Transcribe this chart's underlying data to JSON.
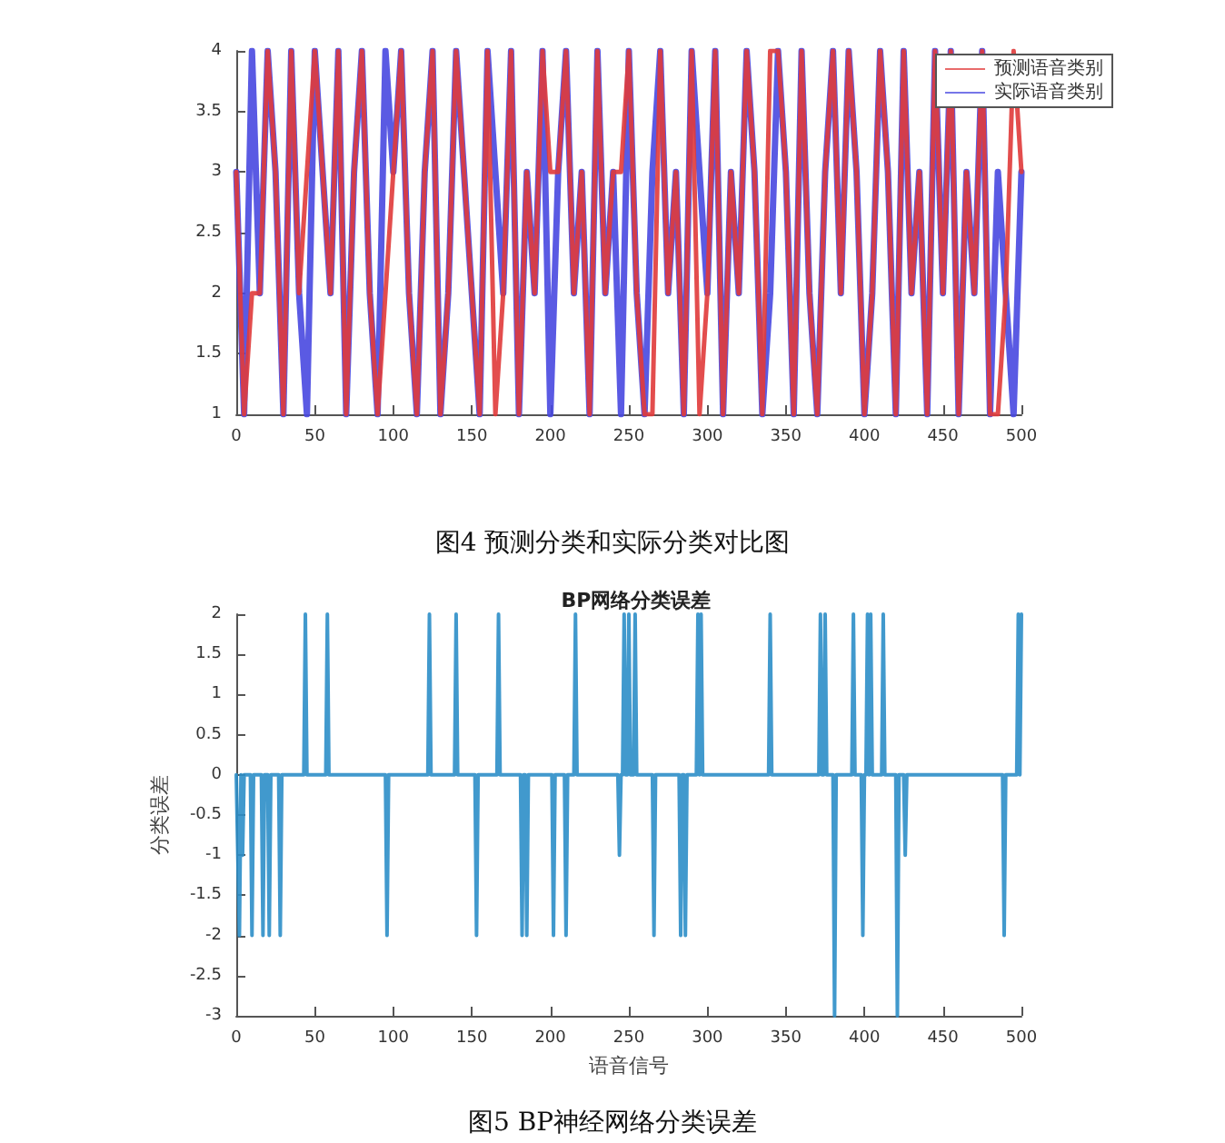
{
  "chart_data": [
    {
      "type": "line",
      "annotations": [
        "图4 预测分类和实际分类对比图"
      ],
      "xlim": [
        0,
        500
      ],
      "xticks": [
        0,
        50,
        100,
        150,
        200,
        250,
        300,
        350,
        400,
        450,
        500
      ],
      "ylim": [
        1,
        4
      ],
      "yticks": [
        1,
        1.5,
        2,
        2.5,
        3,
        3.5,
        4
      ],
      "grid": false,
      "legend": "top right",
      "marker": "none",
      "line_style": "solid",
      "x": [
        0,
        5,
        10,
        15,
        20,
        25,
        30,
        35,
        40,
        45,
        50,
        55,
        60,
        65,
        70,
        75,
        80,
        85,
        90,
        95,
        100,
        105,
        110,
        115,
        120,
        125,
        130,
        135,
        140,
        145,
        150,
        155,
        160,
        165,
        170,
        175,
        180,
        185,
        190,
        195,
        200,
        205,
        210,
        215,
        220,
        225,
        230,
        235,
        240,
        245,
        250,
        255,
        260,
        265,
        270,
        275,
        280,
        285,
        290,
        295,
        300,
        305,
        310,
        315,
        320,
        325,
        330,
        335,
        340,
        345,
        350,
        355,
        360,
        365,
        370,
        375,
        380,
        385,
        390,
        395,
        400,
        405,
        410,
        415,
        420,
        425,
        430,
        435,
        440,
        445,
        450,
        455,
        460,
        465,
        470,
        475,
        480,
        485,
        490,
        495,
        500
      ],
      "series": [
        {
          "name": "预测语音类别",
          "color": "#e03a3a",
          "values": [
            3,
            1,
            2,
            2,
            4,
            3,
            1,
            4,
            2,
            3,
            4,
            3,
            2,
            4,
            1,
            3,
            4,
            2,
            1,
            2,
            3,
            4,
            2,
            1,
            3,
            4,
            1,
            2,
            4,
            3,
            2,
            1,
            4,
            1,
            2,
            4,
            1,
            3,
            2,
            4,
            3,
            3,
            4,
            2,
            3,
            1,
            4,
            2,
            3,
            3,
            4,
            2,
            1,
            1,
            4,
            2,
            3,
            1,
            4,
            1,
            2,
            4,
            1,
            3,
            2,
            4,
            3,
            1,
            4,
            4,
            3,
            1,
            4,
            2,
            1,
            3,
            4,
            2,
            4,
            3,
            1,
            2,
            4,
            3,
            1,
            4,
            2,
            3,
            1,
            4,
            2,
            4,
            1,
            3,
            2,
            4,
            1,
            1,
            2,
            4,
            3
          ]
        },
        {
          "name": "实际语音类别",
          "color": "#4848e0",
          "values": [
            3,
            1,
            4,
            2,
            4,
            3,
            1,
            4,
            2,
            1,
            4,
            3,
            2,
            4,
            1,
            3,
            4,
            2,
            1,
            4,
            3,
            4,
            2,
            1,
            3,
            4,
            1,
            2,
            4,
            3,
            2,
            1,
            4,
            3,
            2,
            4,
            1,
            3,
            2,
            4,
            1,
            3,
            4,
            2,
            3,
            1,
            4,
            2,
            3,
            1,
            4,
            2,
            1,
            3,
            4,
            2,
            3,
            1,
            4,
            3,
            2,
            4,
            1,
            3,
            2,
            4,
            3,
            1,
            2,
            4,
            3,
            1,
            4,
            2,
            1,
            3,
            4,
            2,
            4,
            3,
            1,
            2,
            4,
            3,
            1,
            4,
            2,
            3,
            1,
            4,
            2,
            4,
            1,
            3,
            2,
            4,
            1,
            3,
            2,
            1,
            3
          ]
        }
      ]
    },
    {
      "type": "line",
      "title": "BP网络分类误差",
      "xlabel": "语音信号",
      "ylabel": "分类误差",
      "annotations": [
        "图5 BP神经网络分类误差"
      ],
      "xlim": [
        0,
        500
      ],
      "xticks": [
        0,
        50,
        100,
        150,
        200,
        250,
        300,
        350,
        400,
        450,
        500
      ],
      "ylim": [
        -3,
        2
      ],
      "yticks": [
        -3,
        -2.5,
        -2,
        -1.5,
        -1,
        -0.5,
        0,
        0.5,
        1,
        1.5,
        2
      ],
      "grid": false,
      "legend": false,
      "marker": "none",
      "line_style": "solid",
      "x": [
        0,
        2,
        3,
        4,
        5,
        9,
        10,
        11,
        16,
        17,
        18,
        20,
        21,
        22,
        27,
        28,
        29,
        43,
        44,
        45,
        57,
        58,
        59,
        95,
        96,
        97,
        122,
        123,
        124,
        139,
        140,
        141,
        152,
        153,
        154,
        166,
        167,
        168,
        181,
        182,
        183,
        184,
        185,
        186,
        201,
        202,
        203,
        209,
        210,
        211,
        215,
        216,
        217,
        243,
        244,
        245,
        246,
        247,
        248,
        249,
        250,
        251,
        253,
        254,
        255,
        265,
        266,
        267,
        282,
        283,
        284,
        285,
        286,
        287,
        293,
        294,
        295,
        296,
        297,
        339,
        340,
        341,
        371,
        372,
        373,
        374,
        375,
        376,
        380,
        381,
        382,
        392,
        393,
        394,
        398,
        399,
        400,
        401,
        402,
        403,
        404,
        405,
        411,
        412,
        413,
        420,
        421,
        422,
        425,
        426,
        427,
        488,
        489,
        490,
        497,
        498,
        499,
        500
      ],
      "series": [
        {
          "color": "#2c8ec8",
          "values": [
            0,
            -2,
            0,
            -1,
            0,
            0,
            -2,
            0,
            0,
            -2,
            0,
            0,
            -2,
            0,
            0,
            -2,
            0,
            0,
            2,
            0,
            0,
            2,
            0,
            0,
            -2,
            0,
            0,
            2,
            0,
            0,
            2,
            0,
            0,
            -2,
            0,
            0,
            2,
            0,
            0,
            -2,
            0,
            0,
            -2,
            0,
            0,
            -2,
            0,
            0,
            -2,
            0,
            0,
            2,
            0,
            0,
            -1,
            0,
            0,
            2,
            0,
            0,
            2,
            0,
            0,
            2,
            0,
            0,
            -2,
            0,
            0,
            -2,
            0,
            0,
            -2,
            0,
            0,
            2,
            0,
            2,
            0,
            0,
            2,
            0,
            0,
            2,
            0,
            0,
            2,
            0,
            0,
            -3,
            0,
            0,
            2,
            0,
            0,
            -2,
            0,
            0,
            2,
            0,
            2,
            0,
            0,
            2,
            0,
            0,
            -3,
            0,
            0,
            -1,
            0,
            0,
            -2,
            0,
            0,
            2,
            0,
            2
          ]
        }
      ]
    }
  ]
}
